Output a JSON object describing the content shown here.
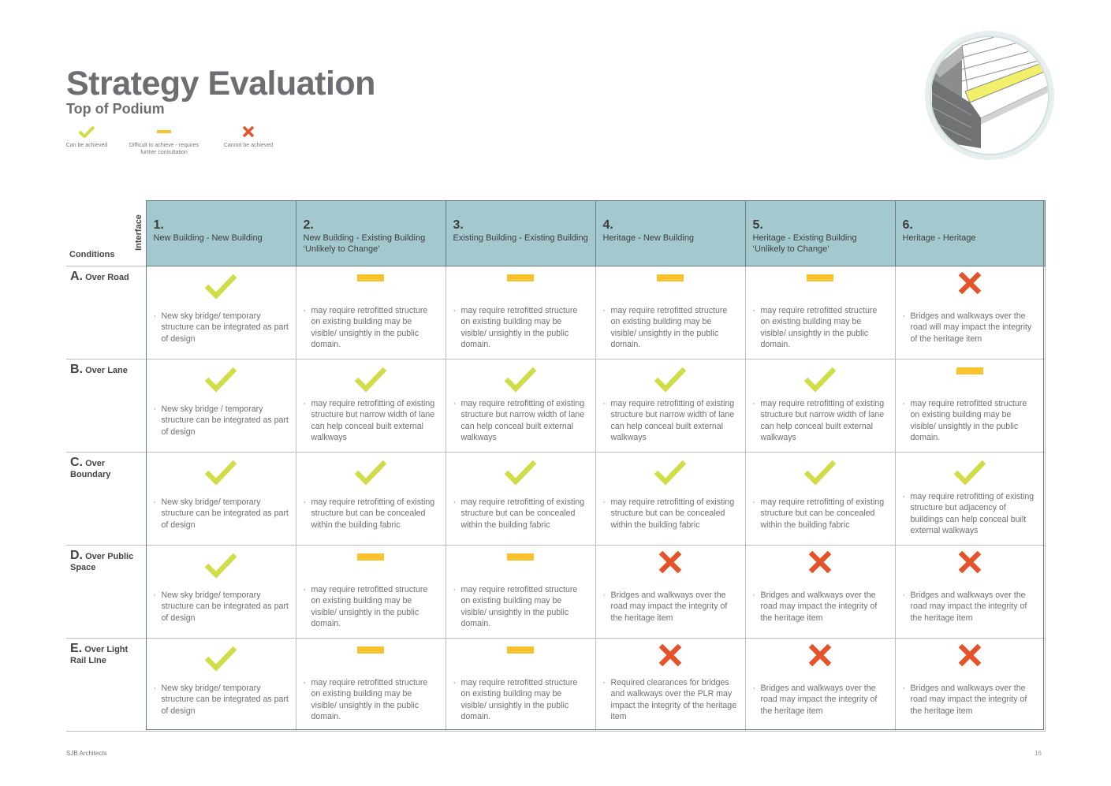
{
  "title": "Strategy Evaluation",
  "subtitle": "Top of Podium",
  "colors": {
    "check": "#d1dc49",
    "dash": "#f8c32e",
    "cross": "#e5532b",
    "header_bg": "#a3c8cd"
  },
  "legend": [
    {
      "icon": "check-icon",
      "label": "Can be achieved"
    },
    {
      "icon": "dash-icon",
      "label": "Difficult to achieve - requires further consultation"
    },
    {
      "icon": "cross-icon",
      "label": "Cannot be achieved"
    }
  ],
  "table": {
    "corner_conditions": "Conditions",
    "corner_interface": "Interface",
    "columns": [
      {
        "num": "1.",
        "name": "New Building - New Building"
      },
      {
        "num": "2.",
        "name": "New Building - Existing Building ‘Unlikely to Change’"
      },
      {
        "num": "3.",
        "name": "Existing Building - Existing Building"
      },
      {
        "num": "4.",
        "name": "Heritage - New Building"
      },
      {
        "num": "5.",
        "name": "Heritage - Existing Building ‘Unlikely to Change’"
      },
      {
        "num": "6.",
        "name": "Heritage - Heritage"
      }
    ],
    "rows": [
      {
        "letter": "A.",
        "name": "Over Road",
        "cells": [
          {
            "status": "check",
            "text": "New sky bridge/ temporary structure can be integrated as part of design"
          },
          {
            "status": "dash",
            "text": "may require retrofitted structure on existing building may be visible/ unsightly in the public domain."
          },
          {
            "status": "dash",
            "text": "may require retrofitted structure on existing building may be visible/ unsightly in the public domain."
          },
          {
            "status": "dash",
            "text": "may require retrofitted structure on existing building may be visible/ unsightly in the public domain."
          },
          {
            "status": "dash",
            "text": "may require retrofitted structure on existing building may be visible/ unsightly in the public domain."
          },
          {
            "status": "cross",
            "text": "Bridges and walkways over the road will may impact the integrity of the heritage item"
          }
        ]
      },
      {
        "letter": "B.",
        "name": "Over Lane",
        "cells": [
          {
            "status": "check",
            "text": "New sky bridge / temporary structure can be integrated as part of design"
          },
          {
            "status": "check",
            "text": "may require retrofitting of existing structure but narrow width of lane can help conceal built external walkways"
          },
          {
            "status": "check",
            "text": "may require retrofitting of existing structure but narrow width of lane can help conceal built external walkways"
          },
          {
            "status": "check",
            "text": "may require retrofitting of existing structure but narrow width of lane can help conceal built external walkways"
          },
          {
            "status": "check",
            "text": "may require retrofitting of existing structure but narrow width of lane can help conceal built external walkways"
          },
          {
            "status": "dash",
            "text": "may require retrofitted structure on existing building may be visible/ unsightly in the public domain."
          }
        ]
      },
      {
        "letter": "C.",
        "name": "Over Boundary",
        "cells": [
          {
            "status": "check",
            "text": "New sky bridge/ temporary structure can be integrated as part of design"
          },
          {
            "status": "check",
            "text": "may require retrofitting of existing structure but can be concealed within the building fabric"
          },
          {
            "status": "check",
            "text": "may require retrofitting of existing structure but can be concealed within the building fabric"
          },
          {
            "status": "check",
            "text": "may require retrofitting of existing structure but can be concealed within the building fabric"
          },
          {
            "status": "check",
            "text": "may require retrofitting of existing structure but can be concealed within the building fabric"
          },
          {
            "status": "check",
            "text": "may require retrofitting of existing structure but adjacency of buildings can help conceal built external walkways"
          }
        ]
      },
      {
        "letter": "D.",
        "name": "Over Public Space",
        "cells": [
          {
            "status": "check",
            "text": "New sky bridge/ temporary structure can be integrated as part of design"
          },
          {
            "status": "dash",
            "text": "may require retrofitted structure on existing building may be visible/ unsightly in the public domain."
          },
          {
            "status": "dash",
            "text": "may require retrofitted structure on existing building may be visible/ unsightly in the public domain."
          },
          {
            "status": "cross",
            "text": "Bridges and walkways over the road may impact the integrity of the heritage item"
          },
          {
            "status": "cross",
            "text": "Bridges and walkways over the road may impact the integrity of the heritage item"
          },
          {
            "status": "cross",
            "text": "Bridges and walkways over the road may impact the integrity of the heritage item"
          }
        ]
      },
      {
        "letter": "E.",
        "name": "Over Light Rail LIne",
        "cells": [
          {
            "status": "check",
            "text": "New sky bridge/ temporary structure can be integrated as part of design"
          },
          {
            "status": "dash",
            "text": "may require retrofitted structure on existing building may be visible/ unsightly in the public domain."
          },
          {
            "status": "dash",
            "text": "may require retrofitted structure on existing building may be visible/ unsightly in the public domain."
          },
          {
            "status": "cross",
            "text": "Required clearances for bridges and walkways over the PLR may impact the integrity of the heritage item"
          },
          {
            "status": "cross",
            "text": "Bridges and walkways over the road may impact the integrity of the heritage item"
          },
          {
            "status": "cross",
            "text": "Bridges and walkways over the road may impact the integrity of the heritage item"
          }
        ]
      }
    ]
  },
  "footer": {
    "company": "SJB Architects",
    "page": "16"
  }
}
